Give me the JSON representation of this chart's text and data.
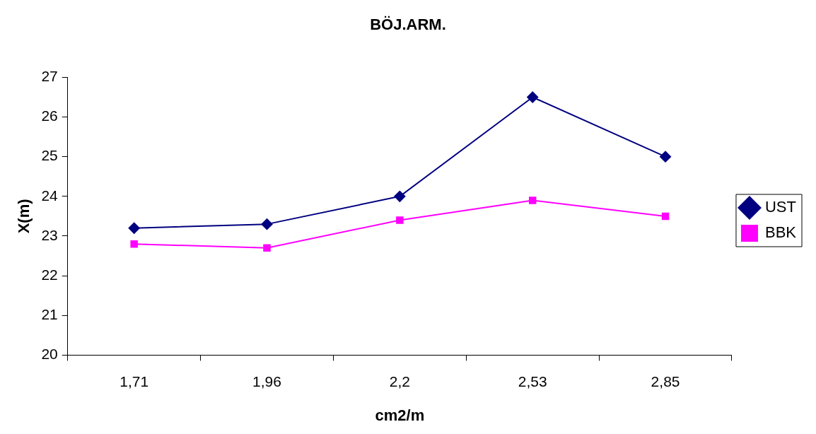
{
  "chart_data": {
    "type": "line",
    "title": "BÖJ.ARM.",
    "xlabel": "cm2/m",
    "ylabel": "X(m)",
    "categories": [
      "1,71",
      "1,96",
      "2,2",
      "2,53",
      "2,85"
    ],
    "series": [
      {
        "name": "UST",
        "color": "#000080",
        "marker": "diamond",
        "values": [
          23.2,
          23.3,
          24.0,
          26.5,
          25.0
        ]
      },
      {
        "name": "BBK",
        "color": "#ff00ff",
        "marker": "square",
        "values": [
          22.8,
          22.7,
          23.4,
          23.9,
          23.5
        ]
      }
    ],
    "ylim": [
      20,
      27
    ],
    "yticks": [
      20,
      21,
      22,
      23,
      24,
      25,
      26,
      27
    ],
    "grid": false,
    "legend": "right",
    "line_style": "solid"
  }
}
